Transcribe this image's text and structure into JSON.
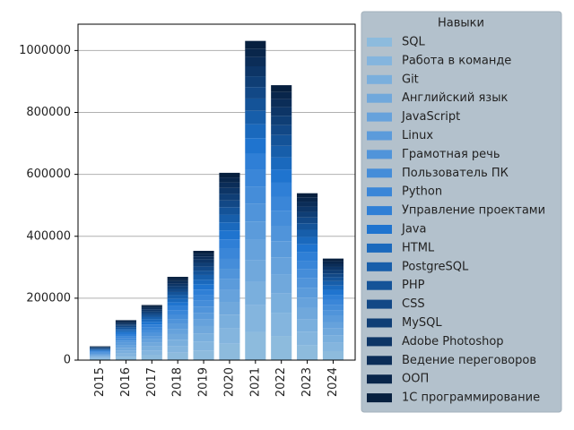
{
  "chart_data": {
    "type": "stacked_bar",
    "legend_title": "Навыки",
    "legend_position": "right",
    "grid": true,
    "categories": [
      "2015",
      "2016",
      "2017",
      "2018",
      "2019",
      "2020",
      "2021",
      "2022",
      "2023",
      "2024"
    ],
    "ylim": [
      0,
      1085000
    ],
    "yticks": [
      0,
      200000,
      400000,
      600000,
      800000,
      1000000
    ],
    "series": [
      {
        "name": "SQL",
        "color": "#8dbbdd",
        "values": [
          4000,
          11000,
          16000,
          24000,
          31000,
          53000,
          91000,
          78000,
          47000,
          29000
        ]
      },
      {
        "name": "Работа в команде",
        "color": "#84b5de",
        "values": [
          4000,
          11000,
          15000,
          22000,
          29000,
          50000,
          86000,
          73000,
          45000,
          27000
        ]
      },
      {
        "name": "Git",
        "color": "#7aafdd",
        "values": [
          3000,
          9000,
          13000,
          20000,
          26000,
          44000,
          76000,
          65000,
          39000,
          24000
        ]
      },
      {
        "name": "Английский язык",
        "color": "#70a8dc",
        "values": [
          3000,
          9000,
          12000,
          18000,
          24000,
          41000,
          70000,
          60000,
          37000,
          22000
        ]
      },
      {
        "name": "JavaScript",
        "color": "#66a2dc",
        "values": [
          3000,
          8000,
          11000,
          17000,
          22000,
          38000,
          65000,
          56000,
          34000,
          21000
        ]
      },
      {
        "name": "Linux",
        "color": "#5b9bdb",
        "values": [
          3000,
          8000,
          10000,
          16000,
          21000,
          35000,
          60000,
          52000,
          32000,
          19000
        ]
      },
      {
        "name": "Грамотная речь",
        "color": "#5094da",
        "values": [
          3000,
          7000,
          10000,
          15000,
          20000,
          34000,
          58000,
          50000,
          30000,
          18000
        ]
      },
      {
        "name": "Пользователь ПК",
        "color": "#458dd9",
        "values": [
          2000,
          7000,
          10000,
          14000,
          19000,
          32000,
          55000,
          47000,
          29000,
          17000
        ]
      },
      {
        "name": "Python",
        "color": "#3a86d8",
        "values": [
          2000,
          7000,
          9000,
          14000,
          18000,
          32000,
          54000,
          47000,
          28000,
          17000
        ]
      },
      {
        "name": "Управление проектами",
        "color": "#2f7fd6",
        "values": [
          2000,
          7000,
          9000,
          14000,
          18000,
          31000,
          52000,
          45000,
          27000,
          17000
        ]
      },
      {
        "name": "Java",
        "color": "#1f74cf",
        "values": [
          2000,
          6000,
          9000,
          13000,
          17000,
          29000,
          50000,
          43000,
          26000,
          16000
        ]
      },
      {
        "name": "HTML",
        "color": "#1a69bd",
        "values": [
          2000,
          6000,
          8000,
          12000,
          15000,
          26000,
          45000,
          39000,
          24000,
          14000
        ]
      },
      {
        "name": "PostgreSQL",
        "color": "#175eaa",
        "values": [
          2000,
          5000,
          7000,
          11000,
          15000,
          25000,
          43000,
          37000,
          23000,
          14000
        ]
      },
      {
        "name": "PHP",
        "color": "#145398",
        "values": [
          2000,
          5000,
          7000,
          10000,
          14000,
          24000,
          40000,
          35000,
          21000,
          13000
        ]
      },
      {
        "name": "CSS",
        "color": "#124886",
        "values": [
          2000,
          5000,
          6000,
          10000,
          13000,
          22000,
          37000,
          32000,
          19000,
          12000
        ]
      },
      {
        "name": "MySQL",
        "color": "#0f3e75",
        "values": [
          2000,
          4000,
          6000,
          9000,
          12000,
          21000,
          35000,
          30000,
          18000,
          11000
        ]
      },
      {
        "name": "Adobe Photoshop",
        "color": "#0d3566",
        "values": [
          1000,
          4000,
          6000,
          8000,
          11000,
          19000,
          32000,
          28000,
          17000,
          10000
        ]
      },
      {
        "name": "Ведение переговоров",
        "color": "#0b2d58",
        "values": [
          1000,
          4000,
          5000,
          8000,
          10000,
          18000,
          30000,
          26000,
          16000,
          10000
        ]
      },
      {
        "name": "ООП",
        "color": "#09264b",
        "values": [
          1000,
          3000,
          5000,
          7000,
          9000,
          16000,
          27000,
          23000,
          14000,
          9000
        ]
      },
      {
        "name": "1С программирование",
        "color": "#07203f",
        "values": [
          1000,
          3000,
          4000,
          7000,
          9000,
          15000,
          25000,
          22000,
          13000,
          8000
        ]
      }
    ]
  }
}
